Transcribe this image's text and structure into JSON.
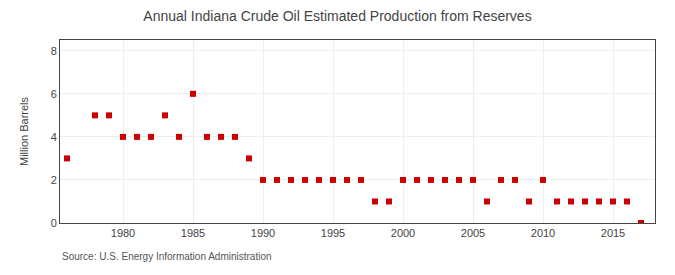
{
  "chart_data": {
    "type": "scatter",
    "title": "Annual Indiana Crude Oil Estimated Production from Reserves",
    "ylabel": "Million Barrels",
    "source": "Source: U.S. Energy Information Administration",
    "color": "#cc0000",
    "marker": "square",
    "grid": true,
    "xlim": [
      1975.5,
      2018
    ],
    "ylim": [
      0,
      8.5
    ],
    "xticks": [
      1980,
      1985,
      1990,
      1995,
      2000,
      2005,
      2010,
      2015
    ],
    "yticks": [
      0,
      2,
      4,
      6,
      8
    ],
    "x": [
      1976,
      1978,
      1979,
      1980,
      1981,
      1982,
      1983,
      1984,
      1985,
      1986,
      1987,
      1988,
      1989,
      1990,
      1991,
      1992,
      1993,
      1994,
      1995,
      1996,
      1997,
      1998,
      1999,
      2000,
      2001,
      2002,
      2003,
      2004,
      2005,
      2006,
      2007,
      2008,
      2009,
      2010,
      2011,
      2012,
      2013,
      2014,
      2015,
      2016,
      2017
    ],
    "values": [
      3,
      5,
      5,
      4,
      4,
      4,
      5,
      4,
      6,
      4,
      4,
      4,
      3,
      2,
      2,
      2,
      2,
      2,
      2,
      2,
      2,
      1,
      1,
      2,
      2,
      2,
      2,
      2,
      2,
      1,
      2,
      2,
      1,
      2,
      1,
      1,
      1,
      1,
      1,
      1,
      0
    ]
  }
}
